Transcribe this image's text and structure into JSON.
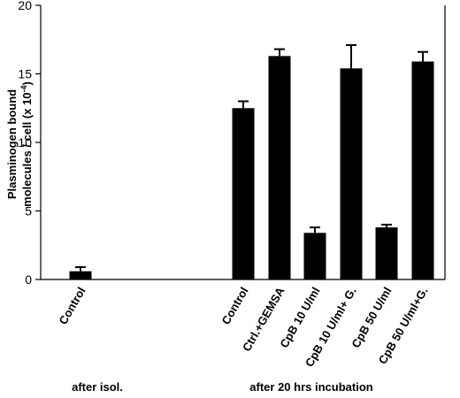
{
  "chart_data": {
    "type": "bar",
    "categories": [
      "Control",
      "Control",
      "Ctrl.+GEMSA",
      "CpB 10 U/ml",
      "CpB 10 U/ml+ G.",
      "CpB 50 U/ml",
      "CpB 50 U/ml+G."
    ],
    "values": [
      0.6,
      12.5,
      16.3,
      3.4,
      15.4,
      3.8,
      15.9
    ],
    "errors": [
      0.3,
      0.5,
      0.5,
      0.4,
      1.7,
      0.2,
      0.7
    ],
    "groups": [
      {
        "label": "after isol.",
        "members": [
          0
        ]
      },
      {
        "label": "after 20 hrs incubation",
        "members": [
          1,
          2,
          3,
          4,
          5,
          6
        ]
      }
    ],
    "ylabel_line1": "Plasminogen bound",
    "ylabel_line2": "molecules / cell (x 10",
    "ylabel_exponent": "-4",
    "ylabel_close": ")",
    "ylim": [
      0,
      20
    ],
    "yticks": [
      0,
      5,
      10,
      15,
      20
    ],
    "bar_color": "#000000",
    "grid": false,
    "legend": "none"
  }
}
